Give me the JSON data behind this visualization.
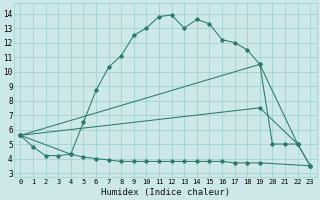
{
  "xlabel": "Humidex (Indice chaleur)",
  "bg_color": "#cce8e8",
  "grid_color": "#9ecece",
  "line_color": "#2d7a6a",
  "xlim": [
    -0.5,
    23.5
  ],
  "ylim": [
    2.7,
    14.7
  ],
  "xtick_labels": [
    "0",
    "1",
    "2",
    "3",
    "4",
    "5",
    "6",
    "7",
    "8",
    "9",
    "10",
    "11",
    "12",
    "13",
    "14",
    "15",
    "16",
    "17",
    "18",
    "19",
    "20",
    "21",
    "22",
    "23"
  ],
  "ytick_labels": [
    "3",
    "4",
    "5",
    "6",
    "7",
    "8",
    "9",
    "10",
    "11",
    "12",
    "13",
    "14"
  ],
  "ytick_vals": [
    3,
    4,
    5,
    6,
    7,
    8,
    9,
    10,
    11,
    12,
    13,
    14
  ],
  "curve1_x": [
    0,
    1,
    2,
    3,
    4,
    5,
    6,
    7,
    8,
    9,
    10,
    11,
    12,
    13,
    14,
    15,
    16,
    17,
    18,
    19,
    20,
    21,
    22
  ],
  "curve1_y": [
    5.6,
    4.8,
    4.2,
    4.2,
    4.3,
    6.5,
    8.7,
    10.3,
    11.1,
    12.5,
    13.0,
    13.8,
    13.9,
    13.0,
    13.6,
    13.3,
    12.2,
    12.0,
    11.5,
    10.5,
    5.0,
    5.0,
    5.0
  ],
  "curve2_x": [
    0,
    19,
    22,
    23
  ],
  "curve2_y": [
    5.6,
    10.5,
    5.0,
    3.5
  ],
  "curve3_x": [
    0,
    19,
    22,
    23
  ],
  "curve3_y": [
    5.6,
    7.5,
    5.0,
    3.5
  ],
  "curve4_x": [
    0,
    4,
    5,
    6,
    7,
    8,
    9,
    10,
    11,
    12,
    13,
    14,
    15,
    16,
    17,
    18,
    19,
    23
  ],
  "curve4_y": [
    5.6,
    4.3,
    4.1,
    4.0,
    3.9,
    3.8,
    3.8,
    3.8,
    3.8,
    3.8,
    3.8,
    3.8,
    3.8,
    3.8,
    3.7,
    3.7,
    3.7,
    3.5
  ]
}
